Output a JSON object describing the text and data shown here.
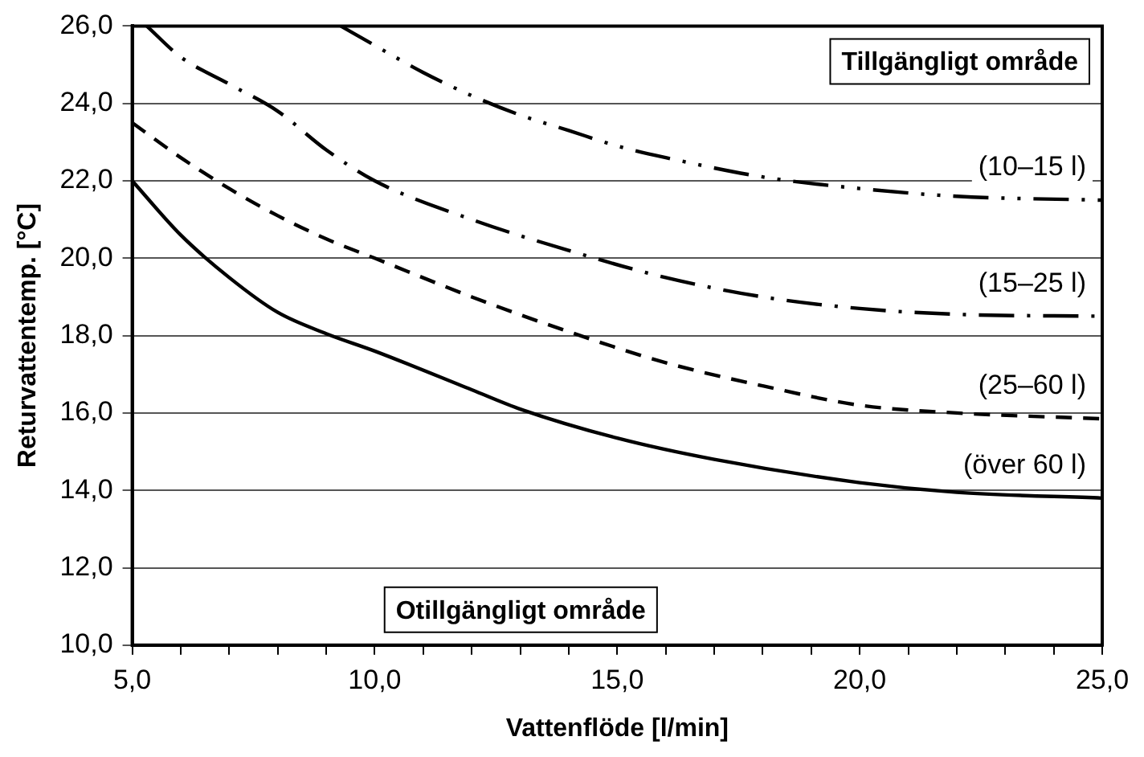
{
  "chart_data": {
    "type": "line",
    "xlabel": "Vattenflöde [l/min]",
    "ylabel": "Returvattentemp. [°C]",
    "xlim": [
      5,
      25
    ],
    "xticks": [
      {
        "value": 5,
        "label": "5,0"
      },
      {
        "value": 6,
        "label": null
      },
      {
        "value": 7,
        "label": null
      },
      {
        "value": 8,
        "label": null
      },
      {
        "value": 9,
        "label": null
      },
      {
        "value": 10,
        "label": "10,0"
      },
      {
        "value": 11,
        "label": null
      },
      {
        "value": 12,
        "label": null
      },
      {
        "value": 13,
        "label": null
      },
      {
        "value": 14,
        "label": null
      },
      {
        "value": 15,
        "label": "15,0"
      },
      {
        "value": 16,
        "label": null
      },
      {
        "value": 17,
        "label": null
      },
      {
        "value": 18,
        "label": null
      },
      {
        "value": 19,
        "label": null
      },
      {
        "value": 20,
        "label": "20,0"
      },
      {
        "value": 21,
        "label": null
      },
      {
        "value": 22,
        "label": null
      },
      {
        "value": 23,
        "label": null
      },
      {
        "value": 24,
        "label": null
      },
      {
        "value": 25,
        "label": "25,0"
      }
    ],
    "ylim": [
      10,
      26
    ],
    "yticks": [
      {
        "value": 10,
        "label": "10,0"
      },
      {
        "value": 12,
        "label": "12,0"
      },
      {
        "value": 14,
        "label": "14,0"
      },
      {
        "value": 16,
        "label": "16,0"
      },
      {
        "value": 18,
        "label": "18,0"
      },
      {
        "value": 20,
        "label": "20,0"
      },
      {
        "value": 22,
        "label": "22,0"
      },
      {
        "value": 24,
        "label": "24,0"
      },
      {
        "value": 26,
        "label": "26,0"
      }
    ],
    "grid": "y",
    "legend": false,
    "marker": "none",
    "annotations": [
      "Tillgängligt område",
      "Otillgängligt område"
    ],
    "series": [
      {
        "name": "(10–15 l)",
        "color": "#000000",
        "line_style": "dashed",
        "x": [
          9.3,
          10,
          11,
          12,
          13,
          14,
          15,
          16,
          18,
          20,
          22,
          25
        ],
        "values": [
          26,
          25.5,
          24.8,
          24.2,
          23.7,
          23.3,
          22.9,
          22.6,
          22.1,
          21.8,
          21.6,
          21.5
        ]
      },
      {
        "name": "(15–25 l)",
        "color": "#000000",
        "line_style": "dashed",
        "x": [
          5.3,
          6,
          7,
          8,
          9,
          10,
          12,
          14,
          16,
          18,
          20,
          22,
          25
        ],
        "values": [
          26,
          25.2,
          24.5,
          23.8,
          22.8,
          22,
          21,
          20.2,
          19.5,
          19,
          18.7,
          18.55,
          18.5
        ]
      },
      {
        "name": "(25–60 l)",
        "color": "#000000",
        "line_style": "dashed",
        "x": [
          5,
          6,
          7,
          8,
          9,
          10,
          12,
          14,
          16,
          18,
          20,
          22,
          25
        ],
        "values": [
          23.5,
          22.6,
          21.8,
          21.1,
          20.5,
          20,
          19,
          18.1,
          17.3,
          16.7,
          16.2,
          16,
          15.85
        ]
      },
      {
        "name": "(över 60 l)",
        "color": "#000000",
        "line_style": "solid",
        "x": [
          5,
          6,
          7,
          8,
          9,
          10,
          12,
          13,
          15,
          17,
          20,
          22,
          25
        ],
        "values": [
          22,
          20.6,
          19.5,
          18.6,
          18.05,
          17.6,
          16.6,
          16.1,
          15.35,
          14.8,
          14.2,
          13.95,
          13.8
        ]
      }
    ]
  }
}
